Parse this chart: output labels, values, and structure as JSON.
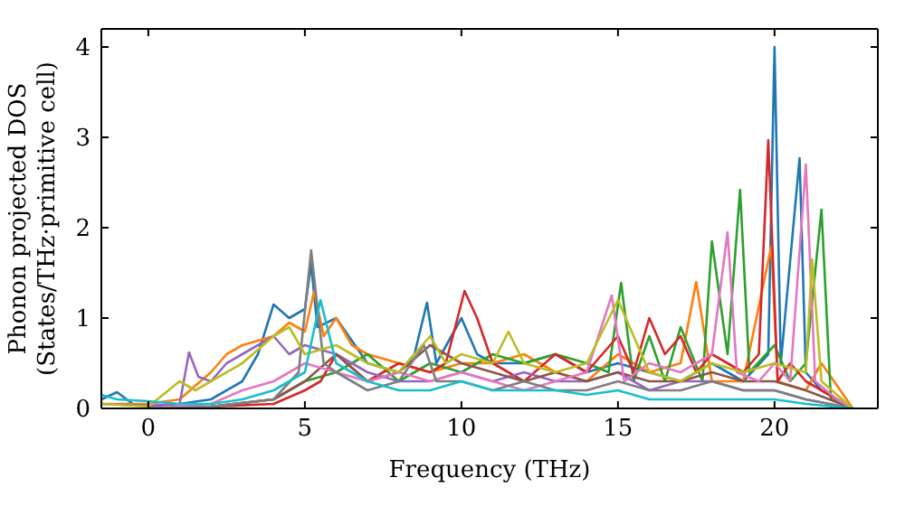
{
  "chart_data": {
    "type": "line",
    "xlabel": "Frequency (THz)",
    "ylabel": "Phonon projected DOS\n(States/THz·primitive cell)",
    "xlim": [
      -1.5,
      23.3
    ],
    "ylim": [
      0,
      4.2
    ],
    "xticks": [
      0,
      5,
      10,
      15,
      20
    ],
    "yticks": [
      0,
      1,
      2,
      3,
      4
    ],
    "marker": "none",
    "line_style": "solid",
    "series": [
      {
        "color": "#1f77b4",
        "x": [
          -1.5,
          -1,
          -0.5,
          0,
          1,
          2,
          3,
          3.5,
          4,
          4.5,
          5,
          5.2,
          5.4,
          6,
          7,
          8,
          8.5,
          8.9,
          9.2,
          10,
          10.5,
          11,
          12,
          13,
          14,
          15,
          16,
          17,
          18,
          19,
          19.8,
          20,
          20.2,
          20.8,
          21,
          21.5,
          22.5
        ],
        "values": [
          0.1,
          0.18,
          0.05,
          0.02,
          0.05,
          0.1,
          0.3,
          0.6,
          1.15,
          1.0,
          1.1,
          1.6,
          0.9,
          1.0,
          0.5,
          0.4,
          0.6,
          1.17,
          0.5,
          1.0,
          0.6,
          0.5,
          0.5,
          0.6,
          0.4,
          0.5,
          0.4,
          0.3,
          0.5,
          0.3,
          0.6,
          4.0,
          0.5,
          2.77,
          0.4,
          0.2,
          0
        ]
      },
      {
        "color": "#ff7f0e",
        "x": [
          -1.5,
          0,
          1,
          2,
          2.5,
          3,
          4,
          4.5,
          5,
          5.3,
          5.6,
          6,
          6.5,
          7,
          8,
          9,
          10,
          11,
          12,
          13,
          14,
          15,
          16,
          17,
          17.5,
          18,
          19,
          19.9,
          20.1,
          21,
          21.5,
          22.5
        ],
        "values": [
          0.05,
          0.05,
          0.1,
          0.4,
          0.6,
          0.7,
          0.8,
          0.95,
          0.85,
          1.3,
          0.8,
          1.0,
          0.7,
          0.6,
          0.5,
          0.4,
          0.5,
          0.5,
          0.6,
          0.4,
          0.3,
          0.6,
          0.4,
          0.5,
          1.4,
          0.3,
          0.3,
          1.8,
          0.3,
          0.2,
          0.5,
          0
        ]
      },
      {
        "color": "#2ca02c",
        "x": [
          0,
          2,
          4,
          5,
          6,
          7,
          8,
          9,
          10,
          11,
          12,
          13,
          14,
          14.7,
          15.1,
          15.5,
          16,
          16.5,
          17,
          17.7,
          18,
          18.5,
          18.9,
          19.2,
          20,
          20.5,
          21,
          21.5,
          21.8,
          22.5
        ],
        "values": [
          0,
          0.02,
          0.1,
          0.3,
          0.4,
          0.6,
          0.3,
          0.5,
          0.4,
          0.6,
          0.5,
          0.6,
          0.5,
          0.4,
          1.39,
          0.3,
          0.8,
          0.3,
          0.9,
          0.3,
          1.85,
          0.6,
          2.42,
          0.4,
          0.7,
          0.3,
          0.5,
          2.2,
          0.1,
          0
        ]
      },
      {
        "color": "#d62728",
        "x": [
          0,
          2,
          4,
          5,
          5.5,
          6,
          7,
          8,
          9,
          9.5,
          10.1,
          10.5,
          11,
          12,
          13,
          14,
          15,
          15.5,
          16,
          16.5,
          17,
          17.5,
          18,
          18.5,
          19,
          19.5,
          19.8,
          20.1,
          20.5,
          21,
          21.5,
          22.5
        ],
        "values": [
          0,
          0.02,
          0.05,
          0.2,
          0.3,
          0.6,
          0.3,
          0.5,
          0.4,
          0.5,
          1.3,
          1.0,
          0.5,
          0.3,
          0.6,
          0.4,
          0.8,
          0.4,
          1.0,
          0.6,
          0.8,
          0.4,
          0.6,
          0.5,
          0.4,
          0.6,
          2.97,
          0.3,
          0.5,
          0.3,
          0.2,
          0
        ]
      },
      {
        "color": "#9467bd",
        "x": [
          -1.5,
          0,
          1,
          1.3,
          1.6,
          2,
          2.5,
          3,
          3.5,
          4,
          4.5,
          5,
          6,
          7,
          8,
          9,
          10,
          11,
          12,
          13,
          14,
          15,
          16,
          17,
          18,
          19,
          20,
          21,
          22.5
        ],
        "values": [
          0.05,
          0.03,
          0.05,
          0.62,
          0.35,
          0.3,
          0.5,
          0.6,
          0.7,
          0.8,
          0.6,
          0.7,
          0.6,
          0.4,
          0.3,
          0.3,
          0.4,
          0.3,
          0.4,
          0.3,
          0.3,
          0.4,
          0.2,
          0.3,
          0.3,
          0.2,
          0.2,
          0.1,
          0
        ]
      },
      {
        "color": "#8c564b",
        "x": [
          0,
          2,
          4,
          5,
          6,
          7,
          8,
          9,
          10,
          11,
          12,
          13,
          14,
          15,
          16,
          17,
          18,
          19,
          20,
          21,
          22.5
        ],
        "values": [
          0,
          0.02,
          0.1,
          0.3,
          0.6,
          0.3,
          0.4,
          0.7,
          0.5,
          0.4,
          0.3,
          0.4,
          0.3,
          0.4,
          0.3,
          0.3,
          0.4,
          0.3,
          0.3,
          0.2,
          0
        ]
      },
      {
        "color": "#e377c2",
        "x": [
          0,
          2,
          3,
          4,
          5,
          6,
          7,
          8,
          9,
          10,
          11,
          12,
          13,
          14,
          14.8,
          15.2,
          16,
          17,
          18,
          18.5,
          18.8,
          19.5,
          20,
          20.5,
          21,
          21.3,
          22,
          22.5
        ],
        "values": [
          0,
          0.05,
          0.2,
          0.3,
          0.5,
          0.4,
          0.3,
          0.4,
          0.3,
          0.4,
          0.3,
          0.2,
          0.3,
          0.4,
          1.25,
          0.3,
          0.5,
          0.4,
          0.6,
          1.95,
          0.4,
          0.3,
          0.5,
          0.3,
          2.7,
          0.3,
          0.1,
          0
        ]
      },
      {
        "color": "#7f7f7f",
        "x": [
          0,
          2,
          4,
          4.8,
          5.2,
          5.6,
          6,
          7,
          8,
          8.8,
          9.2,
          10,
          11,
          12,
          13,
          14,
          15,
          16,
          17,
          18,
          19,
          20,
          21,
          22.5
        ],
        "values": [
          0,
          0.02,
          0.1,
          0.4,
          1.75,
          0.5,
          0.4,
          0.2,
          0.3,
          0.7,
          0.3,
          0.3,
          0.2,
          0.3,
          0.2,
          0.2,
          0.3,
          0.2,
          0.2,
          0.3,
          0.2,
          0.2,
          0.1,
          0
        ]
      },
      {
        "color": "#bcbd22",
        "x": [
          -1.5,
          0,
          1,
          1.5,
          2,
          3,
          4,
          4.5,
          5,
          6,
          7,
          8,
          9,
          9.5,
          10,
          11,
          11.5,
          12,
          13,
          14,
          15,
          16,
          17,
          18,
          19,
          20,
          21,
          21.2,
          21.5,
          22.5
        ],
        "values": [
          0.05,
          0.02,
          0.3,
          0.2,
          0.3,
          0.5,
          0.8,
          0.9,
          0.6,
          0.7,
          0.5,
          0.4,
          0.8,
          0.5,
          0.6,
          0.5,
          0.85,
          0.5,
          0.4,
          0.5,
          1.2,
          0.4,
          0.3,
          0.5,
          0.4,
          0.5,
          0.4,
          1.65,
          0.3,
          0
        ]
      },
      {
        "color": "#17becf",
        "x": [
          -1.5,
          -1,
          0,
          1,
          2,
          3,
          4,
          5,
          5.5,
          6,
          7,
          8,
          9,
          10,
          11,
          12,
          13,
          14,
          15,
          16,
          17,
          18,
          19,
          20,
          21,
          22.5
        ],
        "values": [
          0.15,
          0.1,
          0.08,
          0.05,
          0.05,
          0.1,
          0.2,
          0.4,
          1.2,
          0.5,
          0.3,
          0.2,
          0.2,
          0.3,
          0.2,
          0.2,
          0.2,
          0.15,
          0.2,
          0.1,
          0.1,
          0.1,
          0.1,
          0.1,
          0.05,
          0
        ]
      }
    ]
  }
}
